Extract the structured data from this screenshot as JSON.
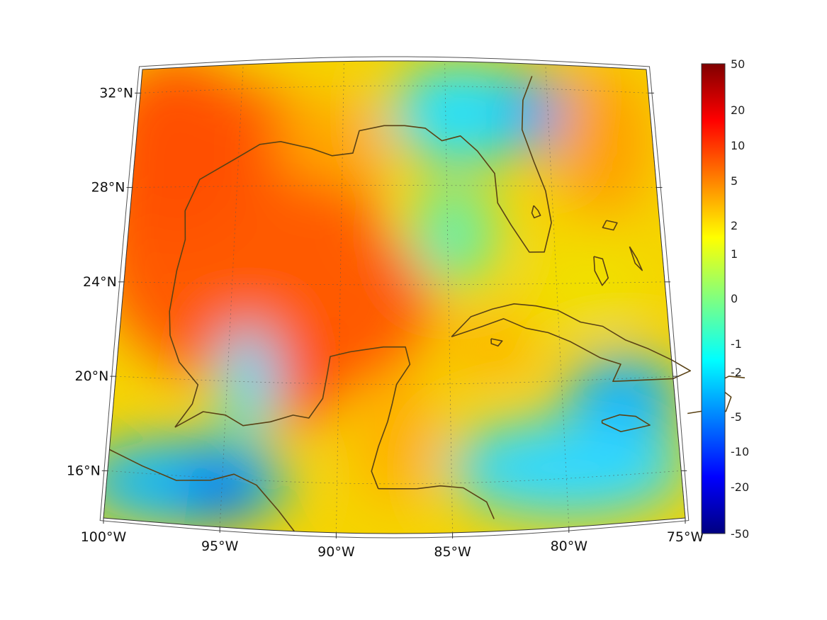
{
  "map": {
    "lon_range": [
      -100,
      -75
    ],
    "lat_range": [
      14,
      33
    ],
    "lon_ticks": [
      {
        "value": -100,
        "label": "100°W"
      },
      {
        "value": -95,
        "label": "95°W"
      },
      {
        "value": -90,
        "label": "90°W"
      },
      {
        "value": -85,
        "label": "85°W"
      },
      {
        "value": -80,
        "label": "80°W"
      },
      {
        "value": -75,
        "label": "75°W"
      }
    ],
    "lat_ticks": [
      {
        "value": 16,
        "label": "16°N"
      },
      {
        "value": 20,
        "label": "20°N"
      },
      {
        "value": 24,
        "label": "24°N"
      },
      {
        "value": 28,
        "label": "28°N"
      },
      {
        "value": 32,
        "label": "32°N"
      }
    ],
    "grid": true,
    "coastline_color": "#5a4215"
  },
  "colorbar": {
    "colormap": "jet",
    "labels": [
      "50",
      "20",
      "10",
      "5",
      "2",
      "1",
      "0",
      "-1",
      "-2",
      "-5",
      "-10",
      "-20",
      "-50"
    ]
  }
}
